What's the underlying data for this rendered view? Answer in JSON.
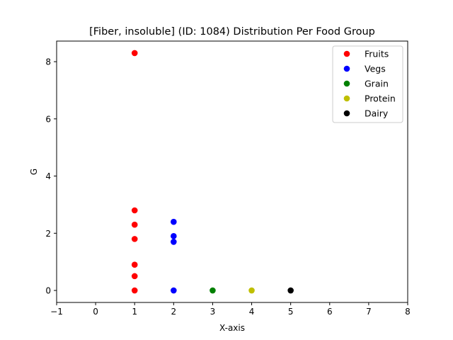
{
  "chart_data": {
    "type": "scatter",
    "title": "[Fiber, insoluble] (ID: 1084) Distribution Per Food Group",
    "xlabel": "X-axis",
    "ylabel": "G",
    "xlim": [
      -1,
      8
    ],
    "ylim": [
      -0.42,
      8.72
    ],
    "xticks": [
      -1,
      0,
      1,
      2,
      3,
      4,
      5,
      6,
      7,
      8
    ],
    "yticks": [
      0,
      2,
      4,
      6,
      8
    ],
    "grid": false,
    "legend_position": "top-right",
    "series": [
      {
        "name": "Fruits",
        "color": "#ff0000",
        "points": [
          [
            1,
            8.3
          ],
          [
            1,
            2.8
          ],
          [
            1,
            2.3
          ],
          [
            1,
            1.8
          ],
          [
            1,
            0.9
          ],
          [
            1,
            0.5
          ],
          [
            1,
            0
          ]
        ]
      },
      {
        "name": "Vegs",
        "color": "#0000ff",
        "points": [
          [
            2,
            2.4
          ],
          [
            2,
            1.9
          ],
          [
            2,
            1.7
          ],
          [
            2,
            0
          ]
        ]
      },
      {
        "name": "Grain",
        "color": "#008000",
        "points": [
          [
            3,
            0
          ]
        ]
      },
      {
        "name": "Protein",
        "color": "#bfbf00",
        "points": [
          [
            4,
            0
          ]
        ]
      },
      {
        "name": "Dairy",
        "color": "#000000",
        "points": [
          [
            5,
            0
          ]
        ]
      }
    ]
  }
}
